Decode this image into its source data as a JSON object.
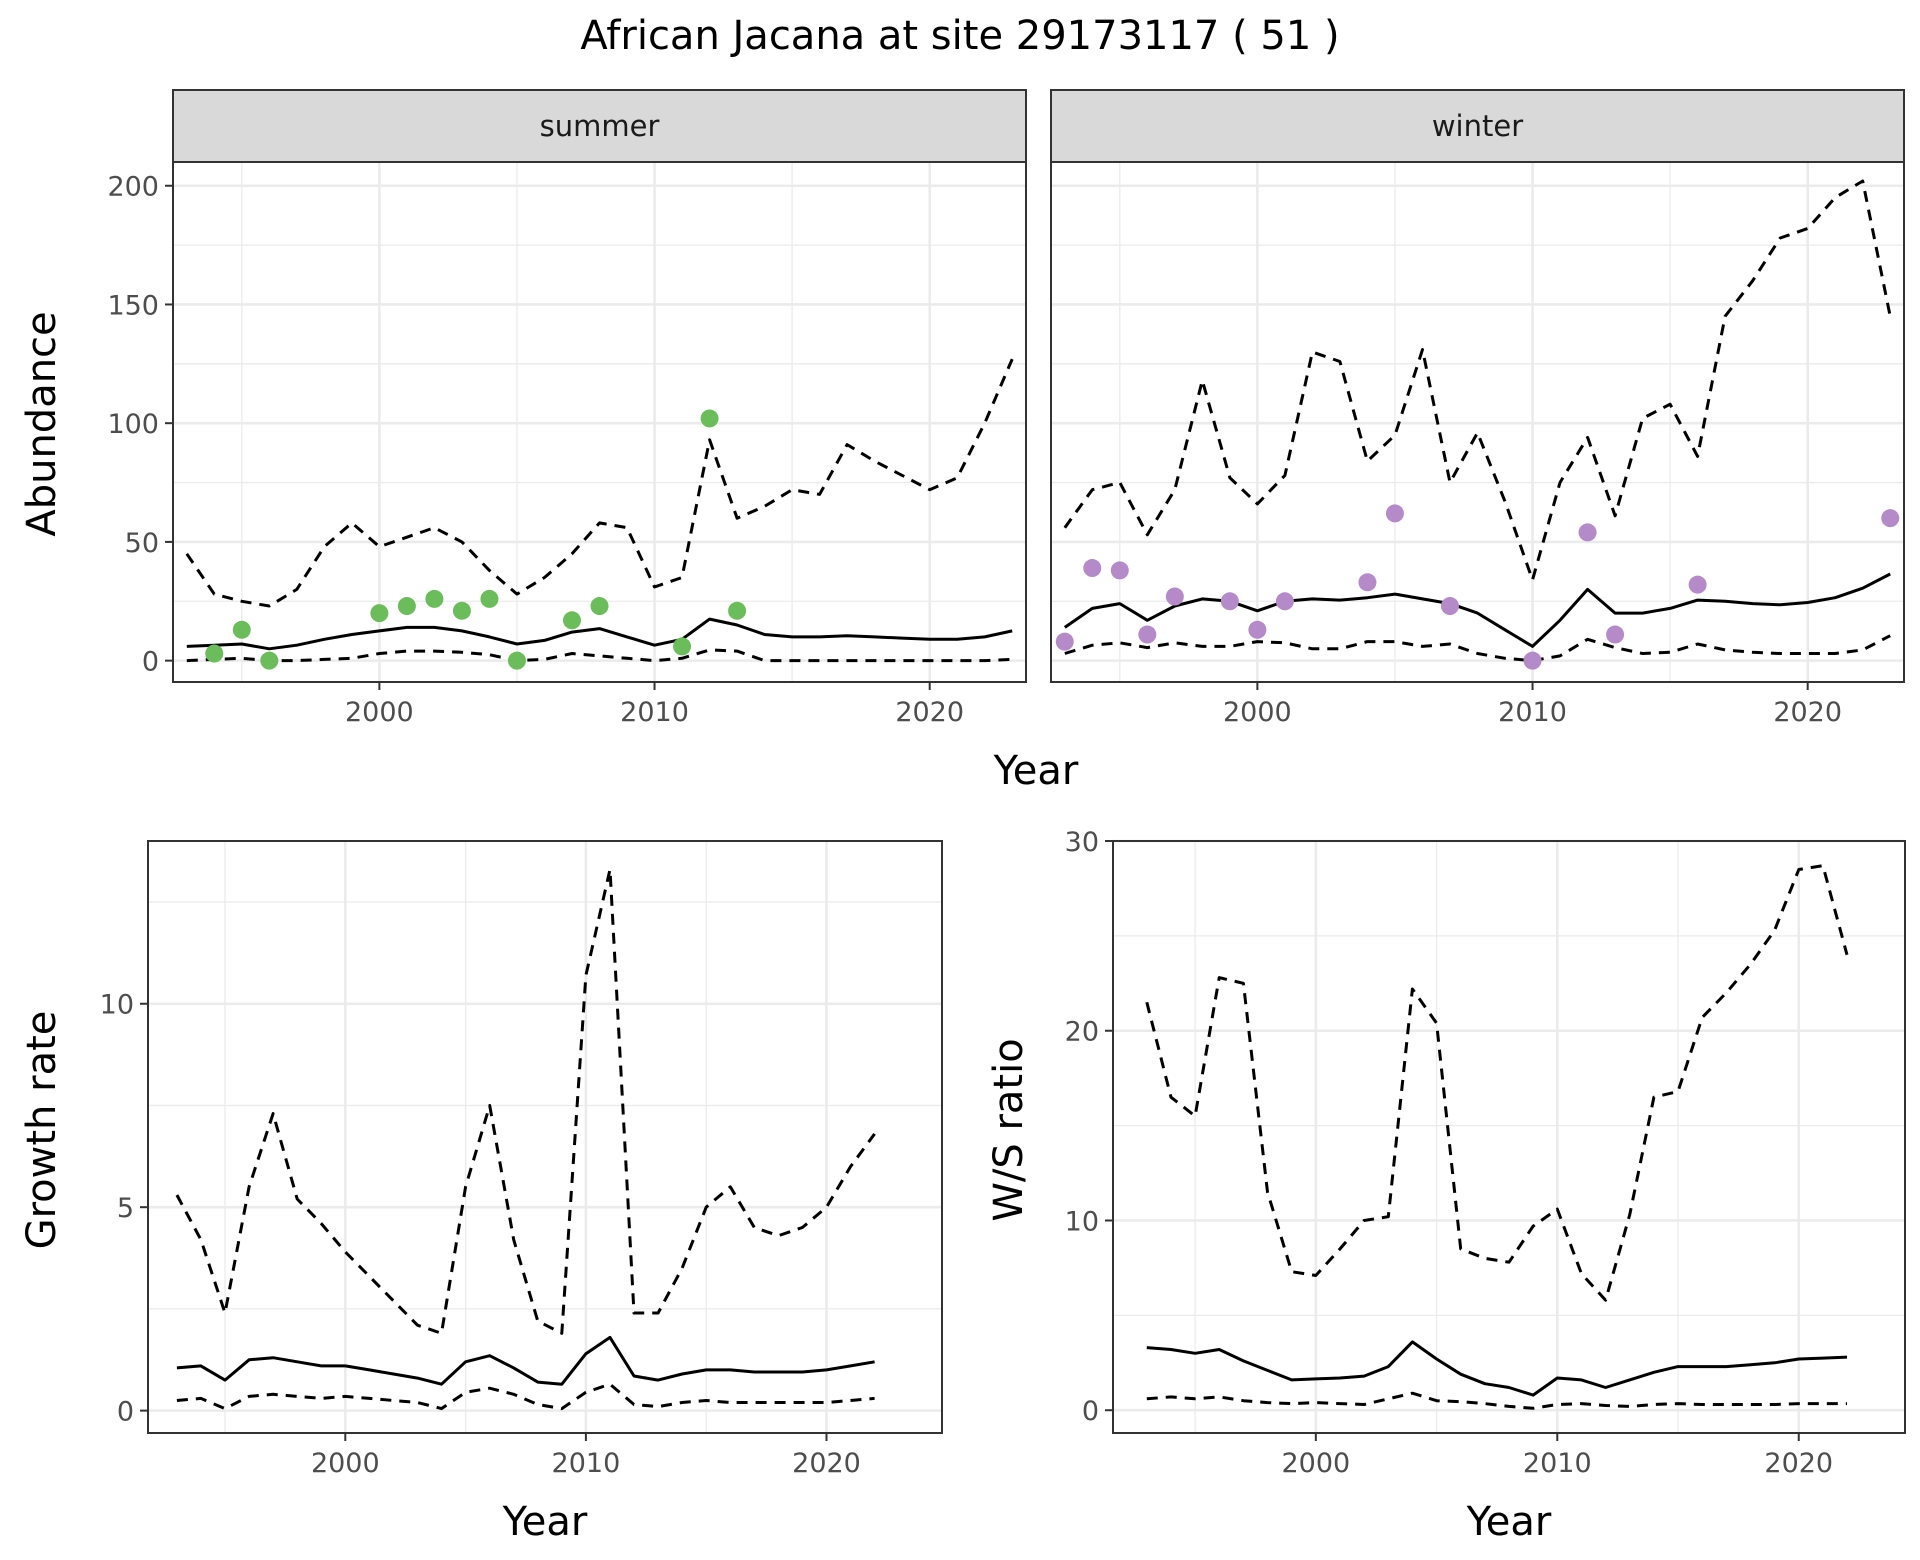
{
  "figure": {
    "title": "African Jacana at site 29173117 ( 51 )"
  },
  "colors": {
    "summer_points": "#6abd5a",
    "winter_points": "#b48ac9",
    "line": "#000000",
    "strip_fill": "#d9d9d9",
    "grid": "#ebebeb"
  },
  "chart_data": [
    {
      "type": "line",
      "panel": "Abundance by season",
      "xlabel": "Year",
      "ylabel": "Abundance",
      "xlim": [
        1992.5,
        2023.5
      ],
      "ylim": [
        -9,
        210
      ],
      "xticks": [
        2000,
        2010,
        2020
      ],
      "yticks": [
        0,
        50,
        100,
        150,
        200
      ],
      "grid": true,
      "facets": [
        {
          "label": "summer",
          "lines": [
            {
              "style": "solid",
              "x": [
                1993,
                1994,
                1995,
                1996,
                1997,
                1998,
                1999,
                2000,
                2001,
                2002,
                2003,
                2004,
                2005,
                2006,
                2007,
                2008,
                2009,
                2010,
                2011,
                2012,
                2013,
                2014,
                2015,
                2016,
                2017,
                2018,
                2019,
                2020,
                2021,
                2022,
                2023
              ],
              "y": [
                6,
                6.5,
                7,
                5,
                6.5,
                9,
                11,
                12.5,
                14,
                14,
                12.5,
                10,
                7,
                8.5,
                12,
                13.5,
                10,
                6.5,
                9,
                17.5,
                15,
                11,
                10,
                10,
                10.5,
                10,
                9.5,
                9,
                9,
                10,
                12.5
              ]
            },
            {
              "style": "dashed",
              "x": [
                1993,
                1994,
                1995,
                1996,
                1997,
                1998,
                1999,
                2000,
                2001,
                2002,
                2003,
                2004,
                2005,
                2006,
                2007,
                2008,
                2009,
                2010,
                2011,
                2012,
                2013,
                2014,
                2015,
                2016,
                2017,
                2018,
                2019,
                2020,
                2021,
                2022,
                2023
              ],
              "y": [
                45,
                28,
                25,
                23,
                30,
                48,
                58,
                48,
                52,
                56,
                50,
                38,
                28,
                35,
                45,
                58,
                56,
                31,
                35,
                93,
                60,
                65,
                72,
                70,
                91,
                84,
                78,
                72,
                77,
                100,
                127
              ]
            },
            {
              "style": "dashed",
              "x": [
                1993,
                1994,
                1995,
                1996,
                1997,
                1998,
                1999,
                2000,
                2001,
                2002,
                2003,
                2004,
                2005,
                2006,
                2007,
                2008,
                2009,
                2010,
                2011,
                2012,
                2013,
                2014,
                2015,
                2016,
                2017,
                2018,
                2019,
                2020,
                2021,
                2022,
                2023
              ],
              "y": [
                0,
                0.5,
                1,
                0,
                0,
                0.5,
                1,
                3,
                4,
                4,
                3.5,
                2.5,
                0,
                0.5,
                3,
                2,
                1,
                0,
                1,
                4.5,
                4,
                0,
                0,
                0,
                0,
                0,
                0,
                0,
                0,
                0,
                0.5
              ]
            }
          ],
          "points": {
            "x": [
              1994,
              1995,
              1996,
              2000,
              2001,
              2002,
              2003,
              2004,
              2005,
              2007,
              2008,
              2011,
              2012,
              2013
            ],
            "y": [
              3,
              13,
              0,
              20,
              23,
              26,
              21,
              26,
              0,
              17,
              23,
              6,
              102,
              21
            ]
          }
        },
        {
          "label": "winter",
          "lines": [
            {
              "style": "solid",
              "x": [
                1993,
                1994,
                1995,
                1996,
                1997,
                1998,
                1999,
                2000,
                2001,
                2002,
                2003,
                2004,
                2005,
                2006,
                2007,
                2008,
                2009,
                2010,
                2011,
                2012,
                2013,
                2014,
                2015,
                2016,
                2017,
                2018,
                2019,
                2020,
                2021,
                2022,
                2023
              ],
              "y": [
                14,
                22,
                24,
                17,
                23,
                26,
                25,
                21,
                25,
                26,
                25.5,
                26.5,
                28,
                26,
                24,
                20,
                13,
                6,
                17,
                30,
                20,
                20,
                22,
                25.5,
                25,
                24,
                23.5,
                24.5,
                26.5,
                30.5,
                36.5
              ]
            },
            {
              "style": "dashed",
              "x": [
                1993,
                1994,
                1995,
                1996,
                1997,
                1998,
                1999,
                2000,
                2001,
                2002,
                2003,
                2004,
                2005,
                2006,
                2007,
                2008,
                2009,
                2010,
                2011,
                2012,
                2013,
                2014,
                2015,
                2016,
                2017,
                2018,
                2019,
                2020,
                2021,
                2022,
                2023
              ],
              "y": [
                56,
                72,
                75,
                53,
                72,
                118,
                77,
                66,
                78,
                130,
                126,
                84,
                95,
                131,
                75,
                96,
                67,
                34,
                75,
                94,
                61,
                102,
                108,
                86,
                145,
                160,
                178,
                182,
                195,
                202,
                145
              ]
            },
            {
              "style": "dashed",
              "x": [
                1993,
                1994,
                1995,
                1996,
                1997,
                1998,
                1999,
                2000,
                2001,
                2002,
                2003,
                2004,
                2005,
                2006,
                2007,
                2008,
                2009,
                2010,
                2011,
                2012,
                2013,
                2014,
                2015,
                2016,
                2017,
                2018,
                2019,
                2020,
                2021,
                2022,
                2023
              ],
              "y": [
                3,
                6.5,
                7.5,
                5.5,
                7.5,
                6,
                6,
                8,
                7.5,
                5,
                5,
                8,
                8,
                6,
                7,
                3,
                1,
                0,
                2,
                9,
                5.5,
                3,
                3.5,
                7,
                4.5,
                3.5,
                3,
                3,
                3,
                4.5,
                10.5
              ]
            }
          ],
          "points": {
            "x": [
              1993,
              1994,
              1995,
              1996,
              1997,
              1999,
              2000,
              2001,
              2004,
              2005,
              2007,
              2010,
              2012,
              2013,
              2016,
              2023
            ],
            "y": [
              8,
              39,
              38,
              11,
              27,
              25,
              13,
              25,
              33,
              62,
              23,
              0,
              54,
              11,
              32,
              60
            ]
          }
        }
      ]
    },
    {
      "type": "line",
      "panel": "Growth rate",
      "xlabel": "Year",
      "ylabel": "Growth rate",
      "xlim": [
        1991.8,
        2024.8
      ],
      "ylim": [
        -0.55,
        14.0
      ],
      "xticks": [
        2000,
        2010,
        2020
      ],
      "yticks": [
        0,
        5,
        10
      ],
      "grid": true,
      "lines": [
        {
          "style": "solid",
          "x": [
            1993,
            1994,
            1995,
            1996,
            1997,
            1998,
            1999,
            2000,
            2001,
            2002,
            2003,
            2004,
            2005,
            2006,
            2007,
            2008,
            2009,
            2010,
            2011,
            2012,
            2013,
            2014,
            2015,
            2016,
            2017,
            2018,
            2019,
            2020,
            2021,
            2022
          ],
          "y": [
            1.05,
            1.1,
            0.75,
            1.25,
            1.3,
            1.2,
            1.1,
            1.1,
            1.0,
            0.9,
            0.8,
            0.65,
            1.2,
            1.35,
            1.05,
            0.7,
            0.65,
            1.4,
            1.8,
            0.85,
            0.75,
            0.9,
            1.0,
            1.0,
            0.95,
            0.95,
            0.95,
            1.0,
            1.1,
            1.2
          ]
        },
        {
          "style": "dashed",
          "x": [
            1993,
            1994,
            1995,
            1996,
            1997,
            1998,
            1999,
            2000,
            2001,
            2002,
            2003,
            2004,
            2005,
            2006,
            2007,
            2008,
            2009,
            2010,
            2011,
            2012,
            2013,
            2014,
            2015,
            2016,
            2017,
            2018,
            2019,
            2020,
            2021,
            2022
          ],
          "y": [
            5.3,
            4.2,
            2.4,
            5.5,
            7.3,
            5.2,
            4.6,
            3.9,
            3.3,
            2.7,
            2.1,
            1.9,
            5.5,
            7.5,
            4.2,
            2.2,
            1.9,
            10.7,
            13.3,
            2.4,
            2.4,
            3.5,
            5.0,
            5.5,
            4.5,
            4.3,
            4.5,
            5.0,
            6.0,
            6.8
          ]
        },
        {
          "style": "dashed",
          "x": [
            1993,
            1994,
            1995,
            1996,
            1997,
            1998,
            1999,
            2000,
            2001,
            2002,
            2003,
            2004,
            2005,
            2006,
            2007,
            2008,
            2009,
            2010,
            2011,
            2012,
            2013,
            2014,
            2015,
            2016,
            2017,
            2018,
            2019,
            2020,
            2021,
            2022
          ],
          "y": [
            0.25,
            0.3,
            0.05,
            0.35,
            0.4,
            0.35,
            0.3,
            0.35,
            0.3,
            0.25,
            0.2,
            0.05,
            0.45,
            0.55,
            0.4,
            0.15,
            0.05,
            0.45,
            0.65,
            0.15,
            0.1,
            0.2,
            0.25,
            0.2,
            0.2,
            0.2,
            0.2,
            0.2,
            0.25,
            0.3
          ]
        }
      ]
    },
    {
      "type": "line",
      "panel": "W/S ratio",
      "xlabel": "Year",
      "ylabel": "W/S ratio",
      "xlim": [
        1991.6,
        2024.4
      ],
      "ylim": [
        -1.2,
        30.0
      ],
      "xticks": [
        2000,
        2010,
        2020
      ],
      "yticks": [
        0,
        10,
        20,
        30
      ],
      "grid": true,
      "lines": [
        {
          "style": "solid",
          "x": [
            1993,
            1994,
            1995,
            1996,
            1997,
            1998,
            1999,
            2000,
            2001,
            2002,
            2003,
            2004,
            2005,
            2006,
            2007,
            2008,
            2009,
            2010,
            2011,
            2012,
            2013,
            2014,
            2015,
            2016,
            2017,
            2018,
            2019,
            2020,
            2021,
            2022
          ],
          "y": [
            3.3,
            3.2,
            3.0,
            3.2,
            2.6,
            2.1,
            1.6,
            1.65,
            1.7,
            1.8,
            2.3,
            3.6,
            2.7,
            1.9,
            1.4,
            1.2,
            0.8,
            1.7,
            1.6,
            1.2,
            1.6,
            2.0,
            2.3,
            2.3,
            2.3,
            2.4,
            2.5,
            2.7,
            2.75,
            2.8
          ]
        },
        {
          "style": "dashed",
          "x": [
            1993,
            1994,
            1995,
            1996,
            1997,
            1998,
            1999,
            2000,
            2001,
            2002,
            2003,
            2004,
            2005,
            2006,
            2007,
            2008,
            2009,
            2010,
            2011,
            2012,
            2013,
            2014,
            2015,
            2016,
            2017,
            2018,
            2019,
            2020,
            2021,
            2022
          ],
          "y": [
            21.5,
            16.5,
            15.5,
            22.8,
            22.5,
            11.5,
            7.3,
            7.1,
            8.5,
            10.0,
            10.2,
            22.2,
            20.4,
            8.5,
            8.0,
            7.8,
            9.7,
            10.6,
            7.2,
            5.8,
            10.3,
            16.5,
            16.8,
            20.7,
            22.0,
            23.5,
            25.3,
            28.5,
            28.7,
            24.0
          ]
        },
        {
          "style": "dashed",
          "x": [
            1993,
            1994,
            1995,
            1996,
            1997,
            1998,
            1999,
            2000,
            2001,
            2002,
            2003,
            2004,
            2005,
            2006,
            2007,
            2008,
            2009,
            2010,
            2011,
            2012,
            2013,
            2014,
            2015,
            2016,
            2017,
            2018,
            2019,
            2020,
            2021,
            2022
          ],
          "y": [
            0.6,
            0.7,
            0.6,
            0.7,
            0.5,
            0.4,
            0.35,
            0.4,
            0.35,
            0.3,
            0.6,
            0.9,
            0.5,
            0.45,
            0.35,
            0.2,
            0.1,
            0.3,
            0.35,
            0.25,
            0.2,
            0.3,
            0.35,
            0.3,
            0.3,
            0.3,
            0.3,
            0.35,
            0.35,
            0.35
          ]
        }
      ]
    }
  ]
}
